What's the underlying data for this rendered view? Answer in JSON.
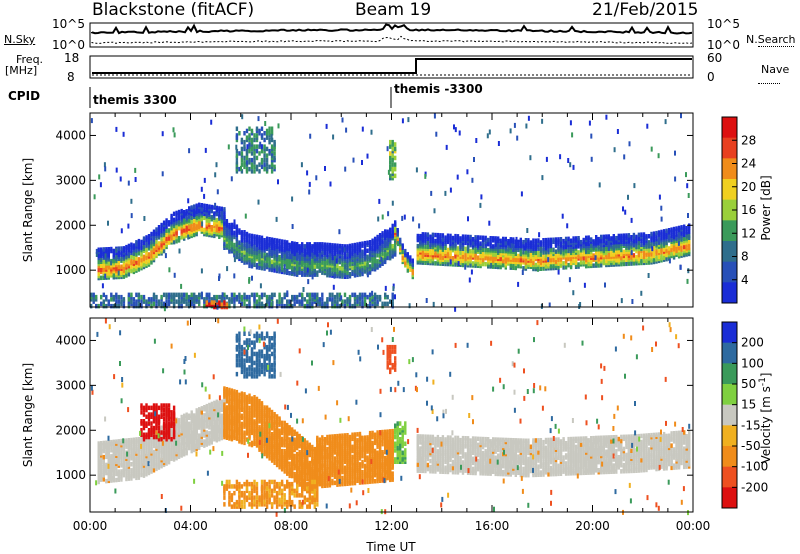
{
  "header": {
    "station": "Blackstone (fitACF)",
    "beam": "Beam 19",
    "date": "21/Feb/2015"
  },
  "summary_panels": {
    "nsky": {
      "label": "N.Sky",
      "top_tick": "10^5",
      "bottom_tick": "10^0"
    },
    "nsearch": {
      "label": "N.Search",
      "top_tick": "10^5",
      "bottom_tick": "10^0"
    },
    "freq": {
      "label_line1": "Freq.",
      "label_line2": "[MHz]",
      "top_tick": "18",
      "bottom_tick": "8"
    },
    "nave": {
      "label": "Nave",
      "top_tick": "60",
      "bottom_tick": "0"
    },
    "cpid": {
      "label": "CPID",
      "segments": [
        "themis 3300",
        "themis -3300"
      ]
    }
  },
  "colors": {
    "power_scale": [
      "#1a2dd6",
      "#2850b8",
      "#2f6e8c",
      "#3a9a5a",
      "#9ad03a",
      "#f0d020",
      "#f08c1a",
      "#e84020",
      "#dd1010"
    ],
    "velocity_scale": [
      "#1a2dd6",
      "#2e6aa0",
      "#3a9a5a",
      "#7fd040",
      "#c8c8c0",
      "#f0b020",
      "#f08c1a",
      "#ee5020",
      "#dd1010"
    ],
    "ground_scatter": "#c8c8c0"
  },
  "chart_data": [
    {
      "type": "heatmap",
      "panel": "power",
      "xlabel": "",
      "ylabel": "Slant Range [km]",
      "x_range_hours": [
        0,
        24
      ],
      "ylim": [
        180,
        4500
      ],
      "yticks": [
        "1000",
        "2000",
        "3000",
        "4000"
      ],
      "colorbar": {
        "label": "Power [dB]",
        "ticks": [
          "4",
          "8",
          "12",
          "16",
          "20",
          "24",
          "28"
        ],
        "range": [
          0,
          32
        ]
      },
      "bands": [
        {
          "x": [
            0.3,
            5.3
          ],
          "center_km": [
            1150,
            1180,
            1450,
            1950,
            2150,
            2050
          ],
          "width_km": 650,
          "peak_db": 27
        },
        {
          "x": [
            5.3,
            12.1
          ],
          "center_km": [
            1850,
            1450,
            1350,
            1250,
            1250,
            1200,
            1300,
            1700
          ],
          "width_km": 700,
          "peak_db": 14
        },
        {
          "x": [
            12.1,
            12.8
          ],
          "center_km": [
            1900,
            1300,
            1050
          ],
          "width_km": 400,
          "peak_db": 26
        },
        {
          "x": [
            13.0,
            23.9
          ],
          "center_km": [
            1500,
            1450,
            1400,
            1350,
            1400,
            1450,
            1500,
            1700
          ],
          "width_km": 650,
          "peak_db": 25
        }
      ],
      "patches": [
        {
          "x": [
            5.8,
            7.3
          ],
          "km": [
            3200,
            4200
          ],
          "db": 10
        },
        {
          "x": [
            11.9,
            12.2
          ],
          "km": [
            3000,
            3900
          ],
          "db": 14
        },
        {
          "x": [
            0.0,
            12.0
          ],
          "km": [
            200,
            500
          ],
          "db": 8
        },
        {
          "x": [
            4.6,
            5.4
          ],
          "km": [
            180,
            320
          ],
          "db": 26
        }
      ]
    },
    {
      "type": "heatmap",
      "panel": "velocity",
      "xlabel": "Time UT",
      "ylabel": "Slant Range [km]",
      "x_range_hours": [
        0,
        24
      ],
      "xticks": [
        "00:00",
        "04:00",
        "08:00",
        "12:00",
        "16:00",
        "20:00",
        "00:00"
      ],
      "ylim": [
        180,
        4500
      ],
      "yticks": [
        "1000",
        "2000",
        "3000",
        "4000"
      ],
      "colorbar": {
        "label": "Velocity [m s^-1]",
        "ticks": [
          "200",
          "100",
          "50",
          "15",
          "-15",
          "-50",
          "-100",
          "-200"
        ],
        "range": [
          -250,
          250
        ]
      },
      "bands": [
        {
          "x": [
            0.3,
            5.3
          ],
          "center_km": [
            1300,
            1400,
            1900,
            2300
          ],
          "width_km": 900,
          "vel": 0
        },
        {
          "x": [
            5.3,
            9.0
          ],
          "center_km": [
            2400,
            2200,
            1600,
            1000
          ],
          "width_km": 1100,
          "vel": -60
        },
        {
          "x": [
            9.0,
            12.0
          ],
          "center_km": [
            1300,
            1350,
            1400,
            1450
          ],
          "width_km": 1100,
          "vel": -60
        },
        {
          "x": [
            13.0,
            23.9
          ],
          "center_km": [
            1500,
            1450,
            1400,
            1450,
            1500,
            1600
          ],
          "width_km": 800,
          "vel": 0
        }
      ],
      "patches": [
        {
          "x": [
            2.0,
            3.4
          ],
          "km": [
            1800,
            2600
          ],
          "vel": -220
        },
        {
          "x": [
            5.8,
            7.3
          ],
          "km": [
            3200,
            4200
          ],
          "vel": 150
        },
        {
          "x": [
            11.8,
            12.2
          ],
          "km": [
            3300,
            3900
          ],
          "vel": -180
        },
        {
          "x": [
            12.1,
            12.5
          ],
          "km": [
            1300,
            2200
          ],
          "vel": 40
        },
        {
          "x": [
            5.3,
            9.0
          ],
          "km": [
            300,
            900
          ],
          "vel": -60
        }
      ]
    }
  ]
}
